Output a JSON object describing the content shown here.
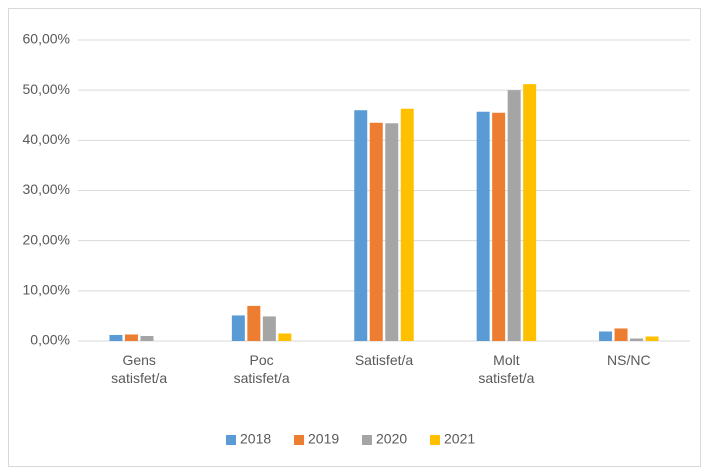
{
  "chart_data": {
    "type": "bar",
    "categories": [
      "Gens satisfet/a",
      "Poc satisfet/a",
      "Satisfet/a",
      "Molt satisfet/a",
      "NS/NC"
    ],
    "series": [
      {
        "name": "2018",
        "color": "#5b9bd5",
        "values": [
          1.2,
          5.1,
          46.0,
          45.7,
          1.9
        ]
      },
      {
        "name": "2019",
        "color": "#ed7d31",
        "values": [
          1.3,
          7.0,
          43.5,
          45.5,
          2.5
        ]
      },
      {
        "name": "2020",
        "color": "#a5a5a5",
        "values": [
          1.0,
          4.9,
          43.4,
          50.0,
          0.5
        ]
      },
      {
        "name": "2021",
        "color": "#ffc000",
        "values": [
          0,
          1.5,
          46.3,
          51.2,
          0.9
        ]
      }
    ],
    "ylim": [
      0,
      60
    ],
    "yticks": [
      {
        "value": 0,
        "label": "0,00%"
      },
      {
        "value": 10,
        "label": "10,00%"
      },
      {
        "value": 20,
        "label": "20,00%"
      },
      {
        "value": 30,
        "label": "30,00%"
      },
      {
        "value": 40,
        "label": "40,00%"
      },
      {
        "value": 50,
        "label": "50,00%"
      },
      {
        "value": 60,
        "label": "60,00%"
      }
    ],
    "grid": true,
    "legend": "bottom"
  }
}
